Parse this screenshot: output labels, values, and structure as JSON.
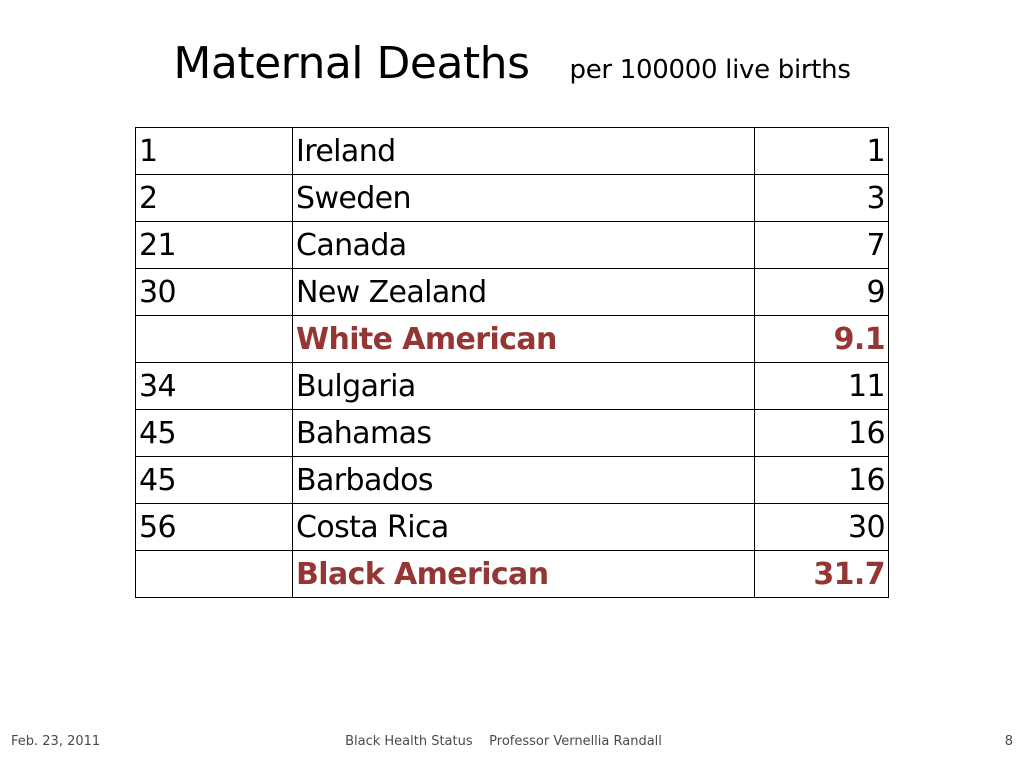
{
  "slide": {
    "title": "Maternal Deaths",
    "subtitle": "per 100000 live births"
  },
  "table": {
    "rows": [
      {
        "rank": "1",
        "name": "Ireland",
        "value": "1",
        "highlight": false
      },
      {
        "rank": "2",
        "name": "Sweden",
        "value": "3",
        "highlight": false
      },
      {
        "rank": "21",
        "name": "Canada",
        "value": "7",
        "highlight": false
      },
      {
        "rank": "30",
        "name": "New Zealand",
        "value": "9",
        "highlight": false
      },
      {
        "rank": "",
        "name": "White American",
        "value": "9.1",
        "highlight": true
      },
      {
        "rank": "34",
        "name": "Bulgaria",
        "value": "11",
        "highlight": false
      },
      {
        "rank": "45",
        "name": "Bahamas",
        "value": "16",
        "highlight": false
      },
      {
        "rank": "45",
        "name": "Barbados",
        "value": "16",
        "highlight": false
      },
      {
        "rank": "56",
        "name": "Costa Rica",
        "value": "30",
        "highlight": false
      },
      {
        "rank": "",
        "name": "Black American",
        "value": "31.7",
        "highlight": true
      }
    ],
    "highlight_color": "#943634"
  },
  "footer": {
    "date": "Feb. 23, 2011",
    "center": "Black Health Status    Professor Vernellia Randall",
    "page": "8"
  }
}
